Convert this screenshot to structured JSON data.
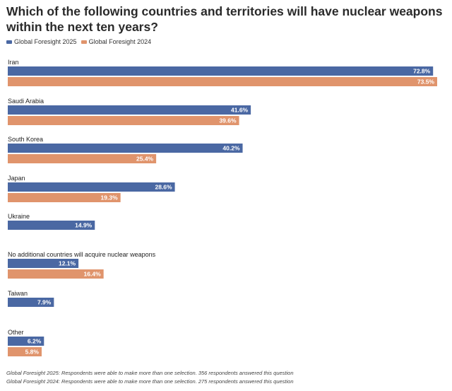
{
  "chart_data": {
    "type": "bar",
    "orientation": "horizontal",
    "title": "Which of the following countries and territories will have nuclear weapons within the next ten years?",
    "categories": [
      "Iran",
      "Saudi Arabia",
      "South Korea",
      "Japan",
      "Ukraine",
      "No additional countries will acquire nuclear weapons",
      "Taiwan",
      "Other"
    ],
    "series": [
      {
        "name": "Global Foresight 2025",
        "color": "#4a68a3",
        "values": [
          72.8,
          41.6,
          40.2,
          28.6,
          14.9,
          12.1,
          7.9,
          6.2
        ],
        "labels": [
          "72.8%",
          "41.6%",
          "40.2%",
          "28.6%",
          "14.9%",
          "12.1%",
          "7.9%",
          "6.2%"
        ]
      },
      {
        "name": "Global Foresight 2024",
        "color": "#e0946c",
        "values": [
          73.5,
          39.6,
          25.4,
          19.3,
          null,
          16.4,
          null,
          5.8
        ],
        "labels": [
          "73.5%",
          "39.6%",
          "25.4%",
          "19.3%",
          null,
          "16.4%",
          null,
          "5.8%"
        ]
      }
    ],
    "xlim": [
      0,
      73.5
    ],
    "legend": "top-left",
    "grid": false
  },
  "footnotes": [
    "Global Foresight 2025: Respondents were able to make more than one selection. 356 respondents answered this question",
    "Global Foresight 2024: Respondents were able to make more than one selection. 275 respondents answered this question"
  ]
}
